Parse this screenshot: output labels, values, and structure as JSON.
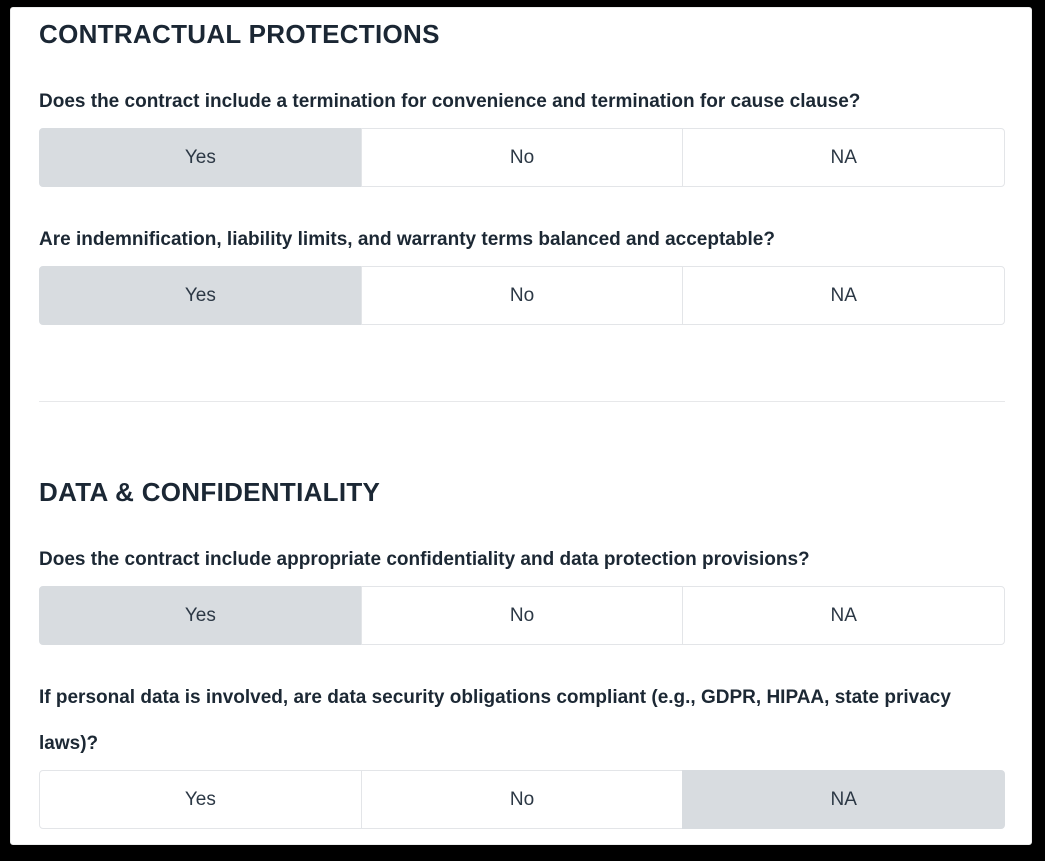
{
  "colors": {
    "frame": "#000000",
    "panel_bg": "#ffffff",
    "text": "#1c2834",
    "selected_option_bg": "#d8dce0",
    "option_border": "#e3e5e8",
    "divider": "#e7e8ea"
  },
  "sections": [
    {
      "title": "CONTRACTUAL PROTECTIONS",
      "questions": [
        {
          "text": "Does the contract include a termination for convenience and termination for cause clause?",
          "options": [
            "Yes",
            "No",
            "NA"
          ],
          "selected": "Yes"
        },
        {
          "text": "Are indemnification, liability limits, and warranty terms balanced and acceptable?",
          "options": [
            "Yes",
            "No",
            "NA"
          ],
          "selected": "Yes"
        }
      ]
    },
    {
      "title": "DATA & CONFIDENTIALITY",
      "questions": [
        {
          "text": "Does the contract include appropriate confidentiality and data protection provisions?",
          "options": [
            "Yes",
            "No",
            "NA"
          ],
          "selected": "Yes"
        },
        {
          "text": "If personal data is involved, are data security obligations compliant (e.g., GDPR, HIPAA, state privacy laws)?",
          "options": [
            "Yes",
            "No",
            "NA"
          ],
          "selected": "NA"
        }
      ]
    }
  ]
}
